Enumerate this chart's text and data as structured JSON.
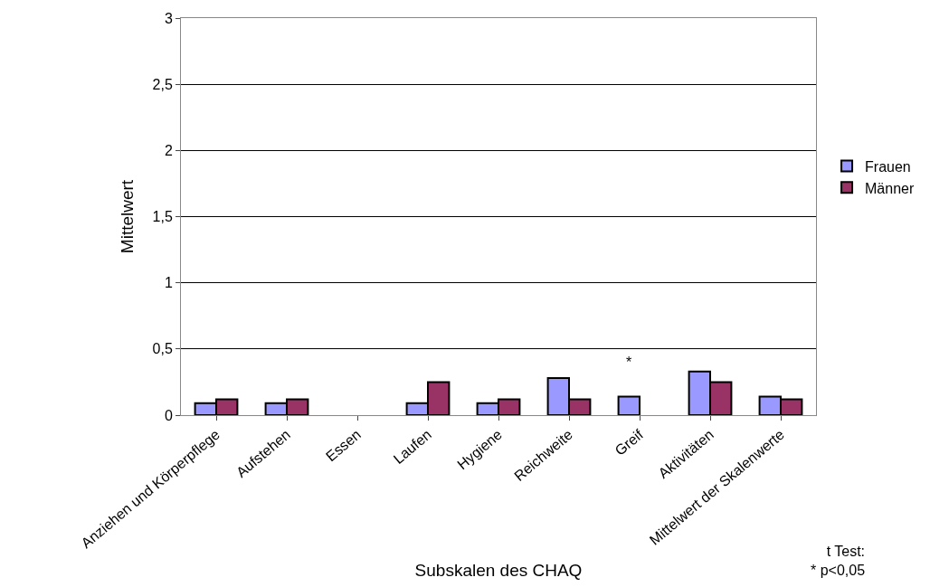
{
  "chart_data": {
    "type": "bar",
    "xlabel": "Subskalen des CHAQ",
    "ylabel": "Mittelwert",
    "categories": [
      "Anziehen und Körperpflege",
      "Aufstehen",
      "Essen",
      "Laufen",
      "Hygiene",
      "Reichweite",
      "Greif",
      "Aktivitäten",
      "Mittelwert der Skalenwerte"
    ],
    "series": [
      {
        "name": "Frauen",
        "color": "#9999ff",
        "values": [
          0.09,
          0.09,
          null,
          0.09,
          0.09,
          0.28,
          0.14,
          0.33,
          0.14
        ]
      },
      {
        "name": "Männer",
        "color": "#993366",
        "values": [
          0.12,
          0.12,
          null,
          0.25,
          0.12,
          0.12,
          null,
          0.25,
          0.12
        ]
      }
    ],
    "ylim": [
      0,
      3
    ],
    "yticks": [
      0,
      {
        "value": 0.5,
        "label": "0,5"
      },
      1,
      {
        "value": 1.5,
        "label": "1,5"
      },
      2,
      {
        "value": 2.5,
        "label": "2,5"
      },
      3
    ],
    "grid": "y",
    "legend": "right",
    "annotations": [
      "*",
      "t Test:\n* p<0,05"
    ]
  }
}
